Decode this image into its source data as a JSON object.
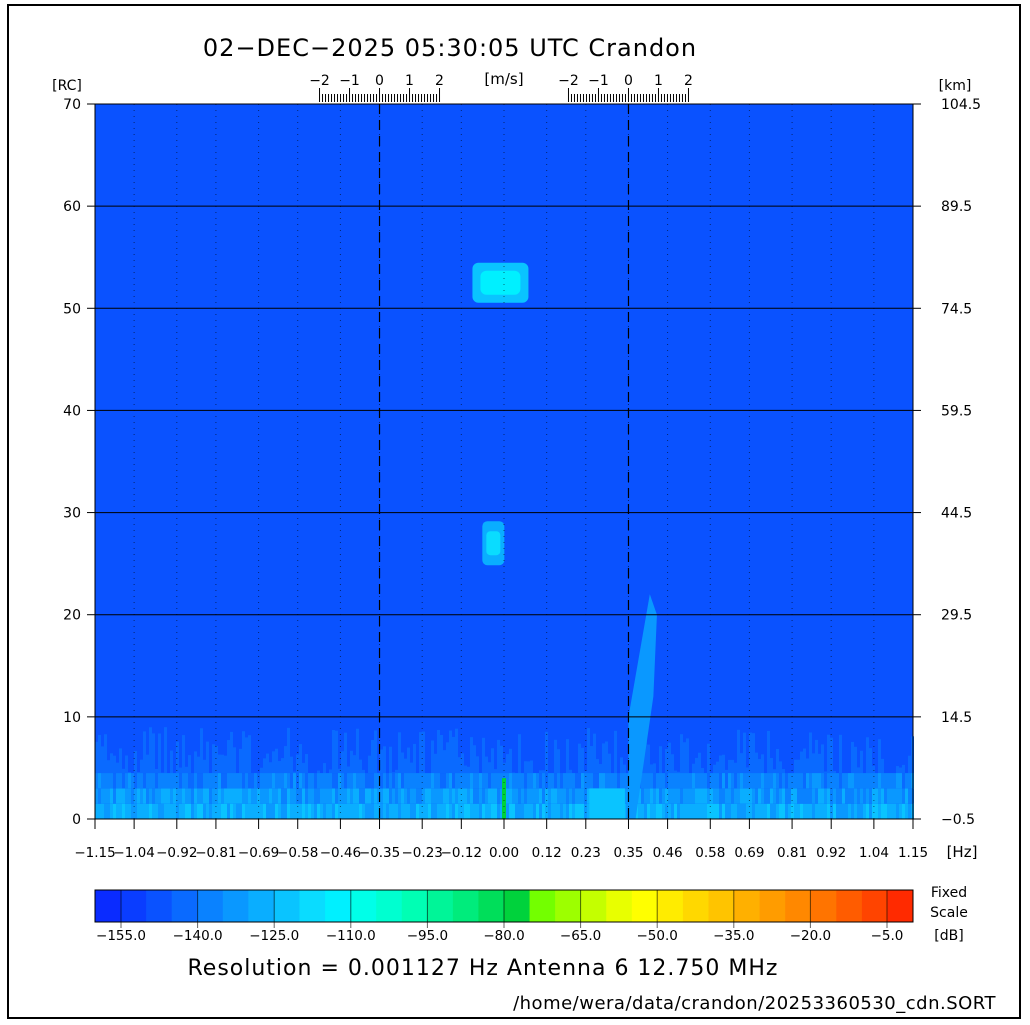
{
  "header": {
    "title": "02−DEC−2025 05:30:05 UTC   Crandon"
  },
  "chart_data": {
    "type": "heatmap",
    "x_unit": "[Hz]",
    "y_left_unit": "[RC]",
    "y_right_unit": "[km]",
    "velocity_unit": "[m/s]",
    "xlim": [
      -1.15,
      1.15
    ],
    "ylim": [
      0,
      70
    ],
    "x_ticks": [
      "−1.15",
      "−1.04",
      "−0.92",
      "−0.81",
      "−0.69",
      "−0.58",
      "−0.46",
      "−0.35",
      "−0.23",
      "−0.12",
      "0.00",
      "0.12",
      "0.23",
      "0.35",
      "0.46",
      "0.58",
      "0.69",
      "0.81",
      "0.92",
      "1.04",
      "1.15"
    ],
    "y_left_ticks": [
      "0",
      "10",
      "20",
      "30",
      "40",
      "50",
      "60",
      "70"
    ],
    "y_right_ticks": [
      "−0.5",
      "14.5",
      "29.5",
      "44.5",
      "59.5",
      "74.5",
      "89.5",
      "104.5"
    ],
    "velocity_scales": [
      {
        "center_hz": -0.35,
        "ticks": [
          "−2",
          "−1",
          "0",
          "1",
          "2"
        ]
      },
      {
        "center_hz": 0.35,
        "ticks": [
          "−2",
          "−1",
          "0",
          "1",
          "2"
        ]
      }
    ],
    "dashed_lines_hz": [
      -0.35,
      0.35
    ],
    "background_db": -150,
    "features": [
      {
        "x_hz": -0.01,
        "range_cell": 52.5,
        "level_db": -115
      },
      {
        "x_hz": -0.03,
        "range_cell": 27,
        "level_db": -120
      },
      {
        "x_hz": 0.42,
        "range_cell": 12,
        "level_db": -125
      },
      {
        "x_hz": 0.0,
        "range_cell": 2,
        "level_db": -80
      }
    ],
    "colorbar": {
      "labels": [
        "−155.0",
        "−140.0",
        "−125.0",
        "−110.0",
        "−95.0",
        "−80.0",
        "−65.0",
        "−50.0",
        "−35.0",
        "−20.0",
        "−5.0"
      ],
      "colors": [
        "#0a2bff",
        "#0a3dff",
        "#0a52ff",
        "#0a6aff",
        "#0a82ff",
        "#0a98ff",
        "#0aaeff",
        "#0ac4ff",
        "#0adcff",
        "#00f0ff",
        "#00ffe8",
        "#00ffd0",
        "#00ffb4",
        "#00f598",
        "#00ec7c",
        "#00de5a",
        "#00d23c",
        "#73ff00",
        "#9dff00",
        "#c4ff00",
        "#e8ff00",
        "#ffff00",
        "#ffec00",
        "#ffd800",
        "#ffc400",
        "#ffb000",
        "#ff9c00",
        "#ff8800",
        "#ff7400",
        "#ff5c00",
        "#ff4400",
        "#ff2a00"
      ],
      "note_line1": "Fixed",
      "note_line2": "Scale",
      "unit": "[dB]"
    }
  },
  "footer": {
    "resolution_text": "Resolution = 0.001127 Hz   Antenna  6   12.750 MHz",
    "file_path": "/home/wera/data/crandon/20253360530_cdn.SORT"
  }
}
